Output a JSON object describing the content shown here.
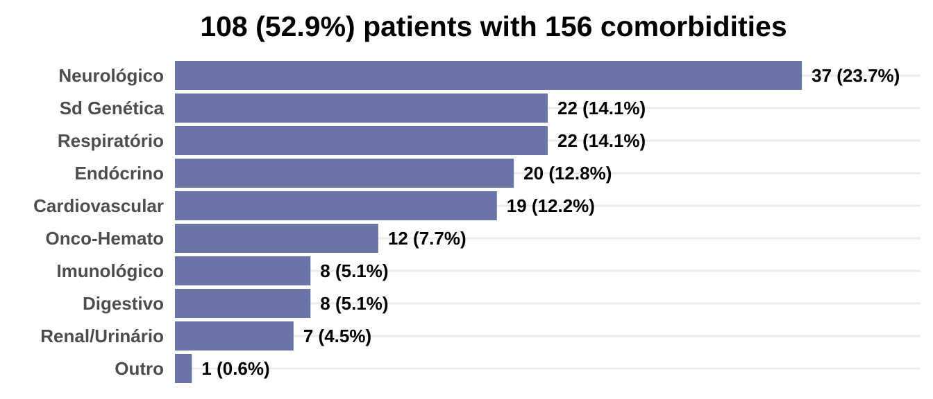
{
  "chart_data": {
    "type": "bar",
    "orientation": "horizontal",
    "title": "108 (52.9%) patients with 156 comorbidities",
    "xlabel": "",
    "ylabel": "",
    "categories": [
      "Neurológico",
      "Sd Genética",
      "Respiratório",
      "Endócrino",
      "Cardiovascular",
      "Onco-Hemato",
      "Imunológico",
      "Digestivo",
      "Renal/Urinário",
      "Outro"
    ],
    "values": [
      37,
      22,
      22,
      20,
      19,
      12,
      8,
      8,
      7,
      1
    ],
    "data_labels": [
      "37 (23.7%)",
      "22 (14.1%)",
      "22 (14.1%)",
      "20 (12.8%)",
      "19 (12.2%)",
      "12 (7.7%)",
      "8 (5.1%)",
      "8 (5.1%)",
      "7 (4.5%)",
      "1 (0.6%)"
    ],
    "xlim": [
      0,
      44
    ],
    "bar_color": "#6b74a6",
    "grid": "horizontal major lines",
    "legend": "none"
  }
}
